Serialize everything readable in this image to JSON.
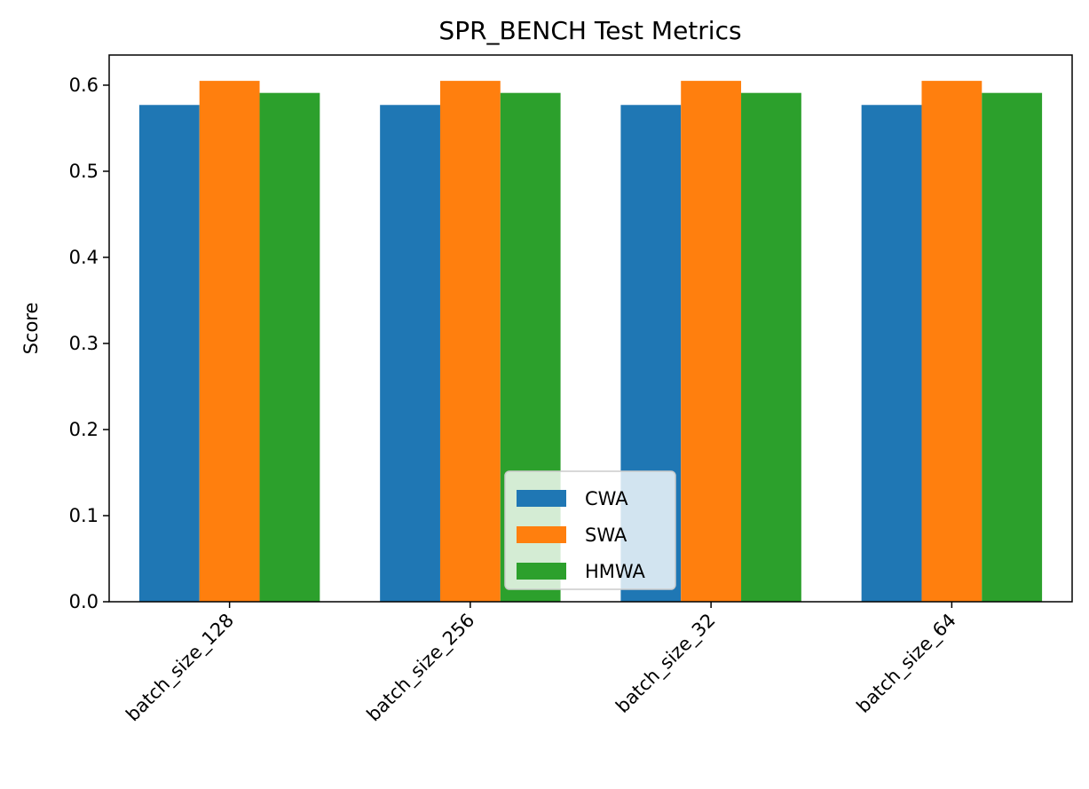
{
  "chart_data": {
    "type": "bar",
    "title": "SPR_BENCH Test Metrics",
    "xlabel": "",
    "ylabel": "Score",
    "categories": [
      "batch_size_128",
      "batch_size_256",
      "batch_size_32",
      "batch_size_64"
    ],
    "series": [
      {
        "name": "CWA",
        "color": "#1f77b4",
        "values": [
          0.577,
          0.577,
          0.577,
          0.577
        ]
      },
      {
        "name": "SWA",
        "color": "#ff7f0e",
        "values": [
          0.605,
          0.605,
          0.605,
          0.605
        ]
      },
      {
        "name": "HMWA",
        "color": "#2ca02c",
        "values": [
          0.591,
          0.591,
          0.591,
          0.591
        ]
      }
    ],
    "ylim": [
      0,
      0.635
    ],
    "yticks": [
      0.0,
      0.1,
      0.2,
      0.3,
      0.4,
      0.5,
      0.6
    ],
    "ytick_labels": [
      "0.0",
      "0.1",
      "0.2",
      "0.3",
      "0.4",
      "0.5",
      "0.6"
    ],
    "grid": false,
    "legend_position": "lower center"
  }
}
